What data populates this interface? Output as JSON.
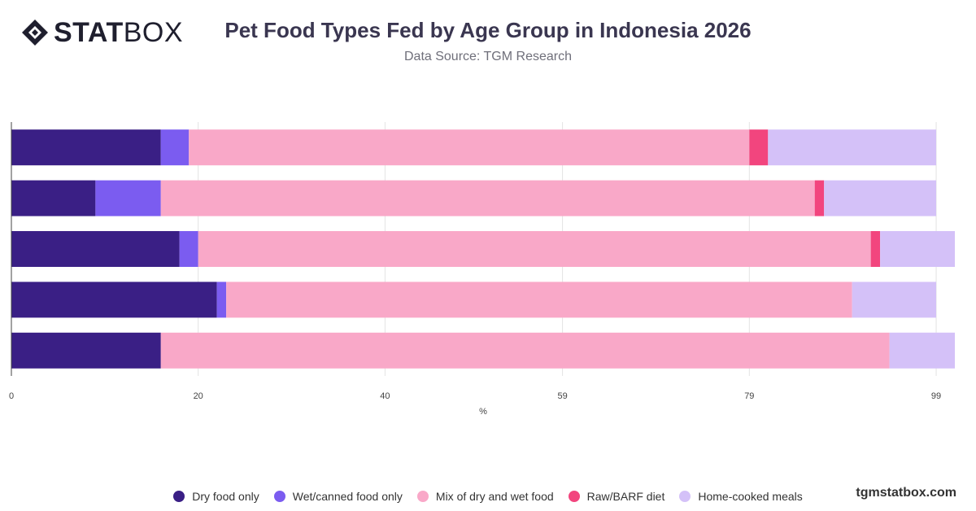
{
  "header": {
    "logo_bold": "STAT",
    "logo_light": "BOX",
    "title": "Pet Food Types Fed by Age Group in Indonesia 2026",
    "subtitle": "Data Source: TGM Research"
  },
  "footer": {
    "brand": "tgmstatbox.com"
  },
  "chart_data": {
    "type": "bar",
    "orientation": "horizontal",
    "stacked": true,
    "categories": [
      "",
      "",
      "",
      "",
      ""
    ],
    "series": [
      {
        "name": "Dry food only",
        "color": "#3a1f85",
        "values": [
          16,
          9,
          18,
          22,
          16
        ]
      },
      {
        "name": "Wet/canned food only",
        "color": "#7b5cf0",
        "values": [
          3,
          7,
          2,
          1,
          0
        ]
      },
      {
        "name": "Mix of dry and wet food",
        "color": "#f9a8c8",
        "values": [
          60,
          70,
          72,
          67,
          78
        ]
      },
      {
        "name": "Raw/BARF diet",
        "color": "#f2457e",
        "values": [
          2,
          1,
          1,
          0,
          0
        ]
      },
      {
        "name": "Home-cooked meals",
        "color": "#d4c1f8",
        "values": [
          18,
          12,
          8,
          9,
          7
        ]
      }
    ],
    "xlabel": "%",
    "x_ticks": [
      "0",
      "20",
      "40",
      "59",
      "79",
      "99"
    ],
    "xlim": [
      0,
      101
    ],
    "grid": true,
    "legend_position": "bottom"
  }
}
